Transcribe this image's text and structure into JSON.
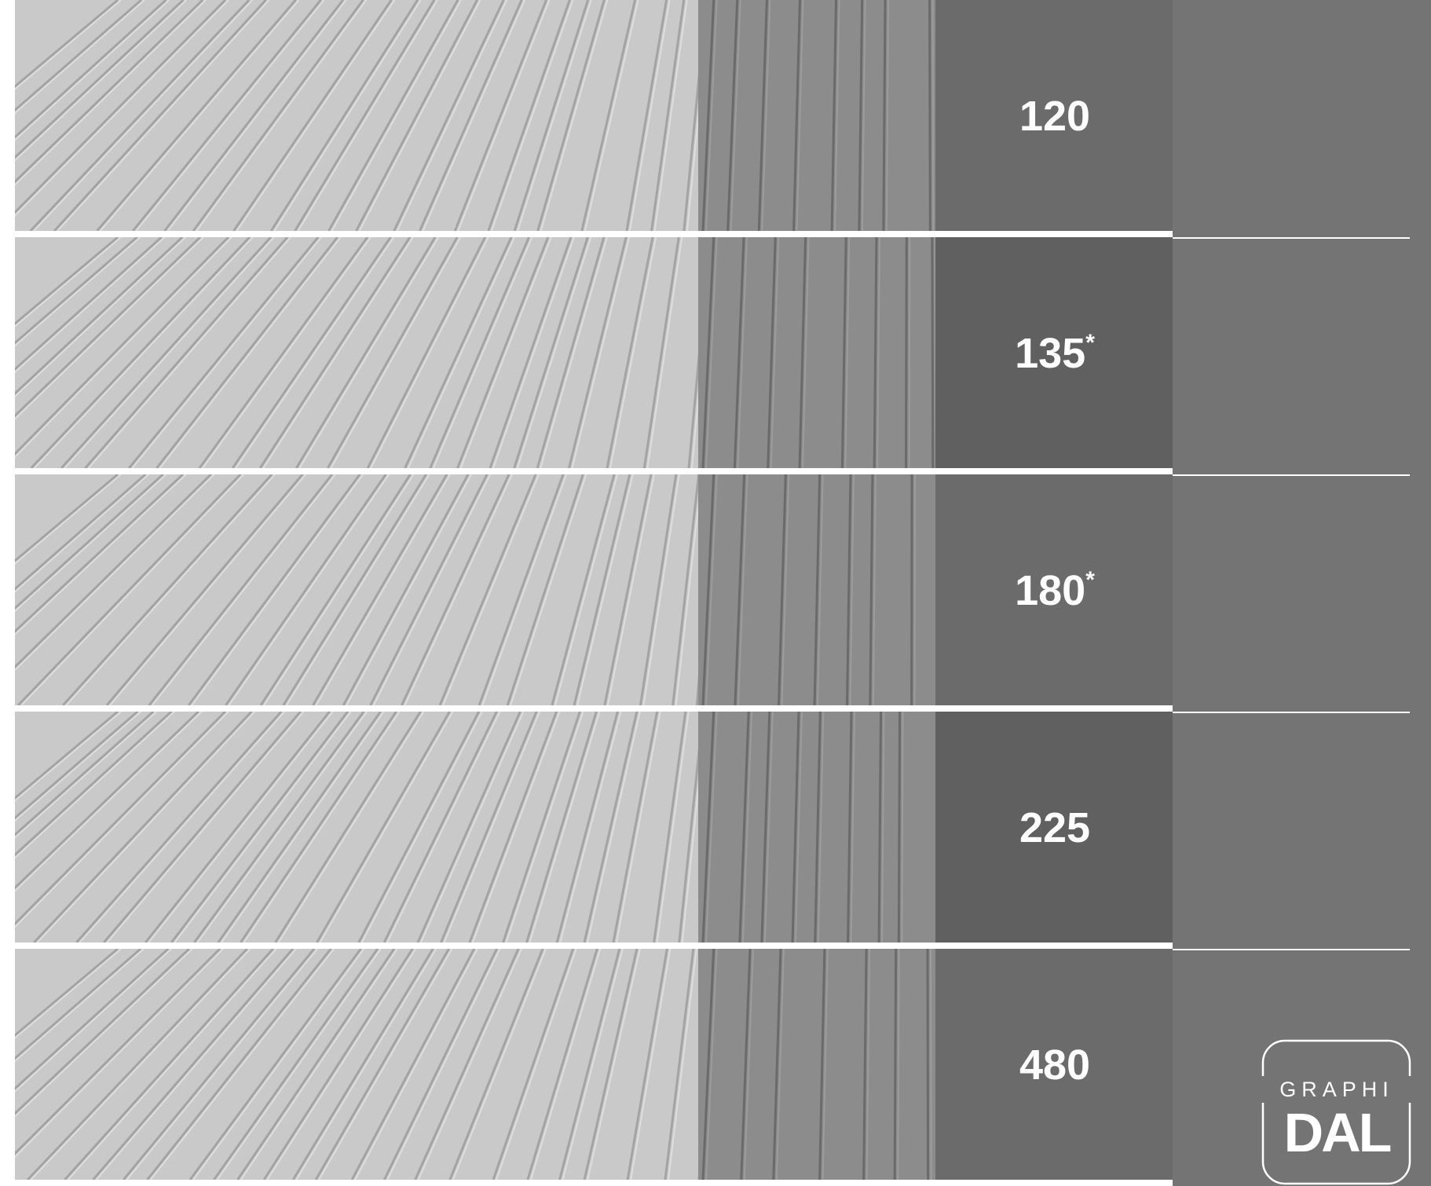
{
  "rows": [
    {
      "label": "120"
    },
    {
      "label": "135",
      "footnote": "*"
    },
    {
      "label": "180",
      "footnote": "*"
    },
    {
      "label": "225"
    },
    {
      "label": "480"
    }
  ],
  "logo": {
    "top": "GRAPHI",
    "main": "DAL"
  }
}
